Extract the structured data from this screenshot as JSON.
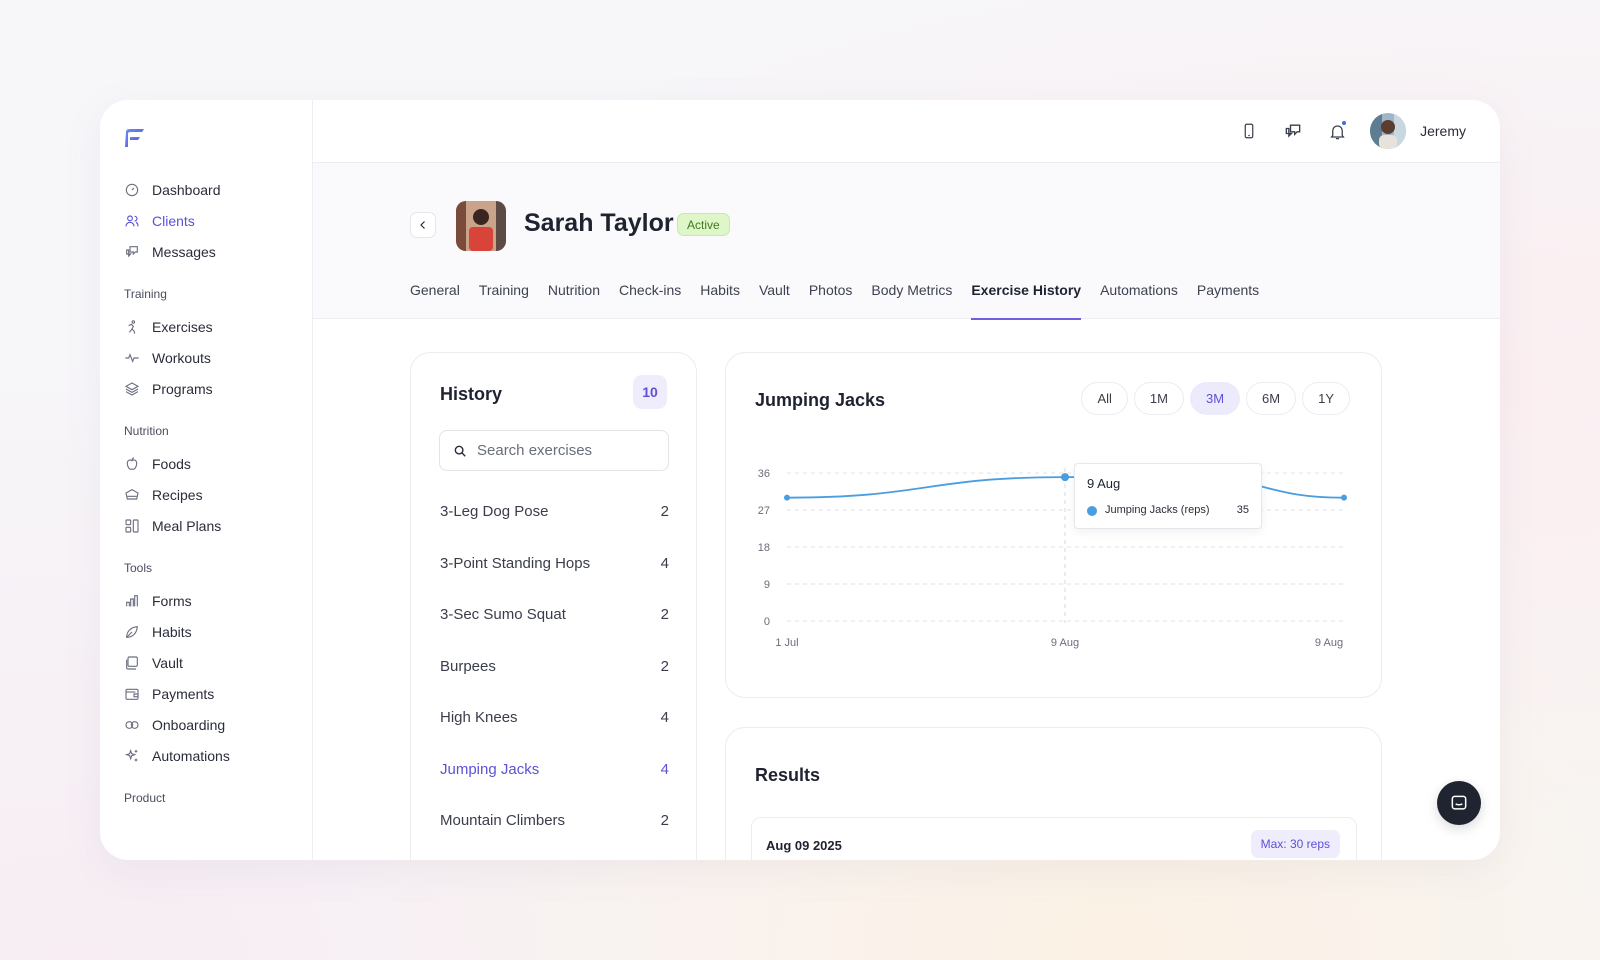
{
  "sidebar": {
    "items": [
      {
        "label": "Dashboard",
        "icon": "dashboard-icon"
      },
      {
        "label": "Clients",
        "icon": "users-icon"
      },
      {
        "label": "Messages",
        "icon": "messages-icon"
      }
    ],
    "sections": [
      {
        "title": "Training",
        "items": [
          {
            "label": "Exercises",
            "icon": "running-icon"
          },
          {
            "label": "Workouts",
            "icon": "pulse-icon"
          },
          {
            "label": "Programs",
            "icon": "layers-icon"
          }
        ]
      },
      {
        "title": "Nutrition",
        "items": [
          {
            "label": "Foods",
            "icon": "apple-icon"
          },
          {
            "label": "Recipes",
            "icon": "chef-hat-icon"
          },
          {
            "label": "Meal Plans",
            "icon": "grid-plan-icon"
          }
        ]
      },
      {
        "title": "Tools",
        "items": [
          {
            "label": "Forms",
            "icon": "forms-icon"
          },
          {
            "label": "Habits",
            "icon": "leaf-icon"
          },
          {
            "label": "Vault",
            "icon": "vault-icon"
          },
          {
            "label": "Payments",
            "icon": "wallet-icon"
          },
          {
            "label": "Onboarding",
            "icon": "link-icon"
          },
          {
            "label": "Automations",
            "icon": "sparkle-icon"
          }
        ]
      },
      {
        "title": "Product"
      }
    ]
  },
  "topbar": {
    "user_name": "Jeremy"
  },
  "client": {
    "name": "Sarah Taylor",
    "status": "Active"
  },
  "tabs": [
    "General",
    "Training",
    "Nutrition",
    "Check-ins",
    "Habits",
    "Vault",
    "Photos",
    "Body Metrics",
    "Exercise History",
    "Automations",
    "Payments"
  ],
  "active_tab": "Exercise History",
  "history": {
    "title": "History",
    "count": "10",
    "search_placeholder": "Search exercises",
    "items": [
      {
        "name": "3-Leg Dog Pose",
        "count": "2"
      },
      {
        "name": "3-Point Standing Hops",
        "count": "4"
      },
      {
        "name": "3-Sec Sumo Squat",
        "count": "2"
      },
      {
        "name": "Burpees",
        "count": "2"
      },
      {
        "name": "High Knees",
        "count": "4"
      },
      {
        "name": "Jumping Jacks",
        "count": "4"
      },
      {
        "name": "Mountain Climbers",
        "count": "2"
      }
    ],
    "active_item": "Jumping Jacks"
  },
  "chart_card": {
    "title": "Jumping Jacks",
    "ranges": [
      "All",
      "1M",
      "3M",
      "6M",
      "1Y"
    ],
    "active_range": "3M",
    "tooltip": {
      "date": "9 Aug",
      "series": "Jumping Jacks (reps)",
      "value": "35"
    }
  },
  "chart_data": {
    "type": "line",
    "title": "",
    "xlabel": "",
    "ylabel": "",
    "x_tick_labels": [
      "1 Jul",
      "9 Aug",
      "9 Aug"
    ],
    "y_ticks": [
      0,
      9,
      18,
      27,
      36
    ],
    "ylim": [
      0,
      36
    ],
    "grid": true,
    "series": [
      {
        "name": "Jumping Jacks (reps)",
        "color": "#4a9ee0",
        "x": [
          "1 Jul",
          "9 Aug",
          "9 Aug",
          "9 Aug"
        ],
        "y": [
          30,
          35,
          35,
          30
        ]
      }
    ]
  },
  "results": {
    "title": "Results",
    "first_row_date": "Aug 09 2025",
    "first_row_max": "Max: 30 reps"
  },
  "colors": {
    "accent": "#5b52d6",
    "line": "#4a9ee0",
    "active_badge": "#dff6c9"
  }
}
